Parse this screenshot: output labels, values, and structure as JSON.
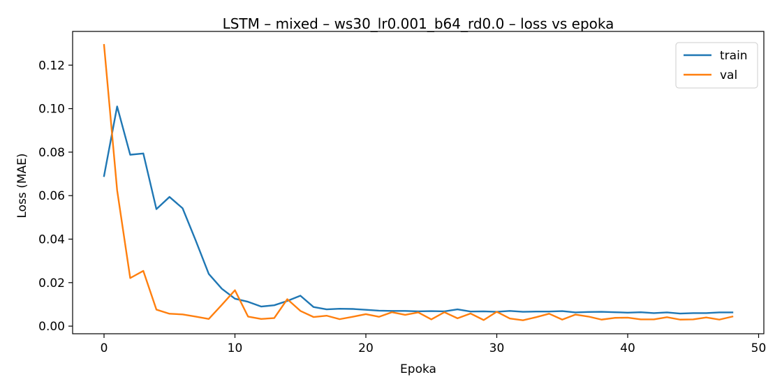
{
  "chart_data": {
    "type": "line",
    "title": "LSTM – mixed – ws30_lr0.001_b64_rd0.0 – loss vs epoka",
    "xlabel": "Epoka",
    "ylabel": "Loss (MAE)",
    "xlim": [
      -2.4,
      50.4
    ],
    "ylim": [
      -0.0035,
      0.1355
    ],
    "xticks": [
      0,
      10,
      20,
      30,
      40,
      50
    ],
    "yticks": [
      0.0,
      0.02,
      0.04,
      0.06,
      0.08,
      0.1,
      0.12
    ],
    "xtick_labels": [
      "0",
      "10",
      "20",
      "30",
      "40",
      "50"
    ],
    "ytick_labels": [
      "0.00",
      "0.02",
      "0.04",
      "0.06",
      "0.08",
      "0.10",
      "0.12"
    ],
    "grid": false,
    "legend_position": "top-right",
    "x": [
      0,
      1,
      2,
      3,
      4,
      5,
      6,
      7,
      8,
      9,
      10,
      11,
      12,
      13,
      14,
      15,
      16,
      17,
      18,
      19,
      20,
      21,
      22,
      23,
      24,
      25,
      26,
      27,
      28,
      29,
      30,
      31,
      32,
      33,
      34,
      35,
      36,
      37,
      38,
      39,
      40,
      41,
      42,
      43,
      44,
      45,
      46,
      47,
      48
    ],
    "series": [
      {
        "name": "train",
        "color": "#1f77b4",
        "values": [
          0.069,
          0.101,
          0.0788,
          0.0794,
          0.0538,
          0.0594,
          0.0542,
          0.0394,
          0.024,
          0.0172,
          0.0126,
          0.0112,
          0.009,
          0.0096,
          0.0116,
          0.014,
          0.0088,
          0.0077,
          0.008,
          0.0079,
          0.0075,
          0.0071,
          0.007,
          0.007,
          0.0068,
          0.0069,
          0.0068,
          0.0077,
          0.0067,
          0.0068,
          0.0066,
          0.007,
          0.0066,
          0.0067,
          0.0067,
          0.0069,
          0.0063,
          0.0065,
          0.0066,
          0.0064,
          0.0062,
          0.0064,
          0.006,
          0.0063,
          0.0058,
          0.006,
          0.006,
          0.0063,
          0.0063
        ]
      },
      {
        "name": "val",
        "color": "#ff7f0e",
        "values": [
          0.1293,
          0.0625,
          0.0221,
          0.0254,
          0.0076,
          0.0057,
          0.0054,
          0.0044,
          0.0033,
          0.0098,
          0.0165,
          0.0044,
          0.0033,
          0.0037,
          0.0124,
          0.007,
          0.0042,
          0.0048,
          0.0032,
          0.0043,
          0.0055,
          0.0043,
          0.0064,
          0.0052,
          0.0063,
          0.0031,
          0.0064,
          0.0036,
          0.0058,
          0.0028,
          0.0066,
          0.0035,
          0.0027,
          0.0041,
          0.0057,
          0.003,
          0.0053,
          0.0044,
          0.003,
          0.0038,
          0.0039,
          0.0031,
          0.0031,
          0.0041,
          0.003,
          0.0031,
          0.004,
          0.003,
          0.0044
        ]
      }
    ]
  }
}
